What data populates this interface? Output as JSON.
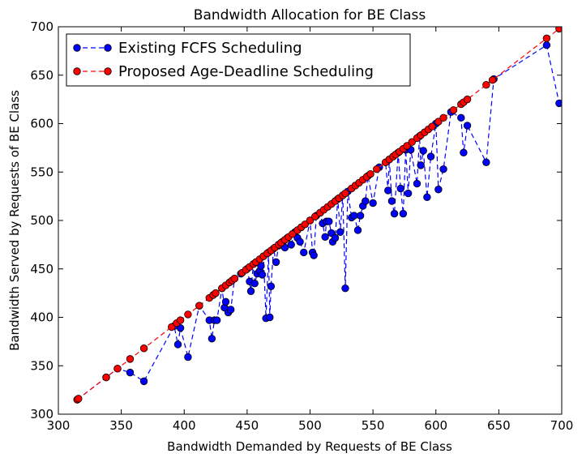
{
  "chart_data": {
    "type": "line",
    "title": "Bandwidth Allocation for BE Class",
    "xlabel": "Bandwidth Demanded by Requests of BE Class",
    "ylabel": "Bandwidth Served by Requests of BE Class",
    "xlim": [
      300,
      700
    ],
    "ylim": [
      300,
      700
    ],
    "xticks": [
      300,
      350,
      400,
      450,
      500,
      550,
      600,
      650,
      700
    ],
    "yticks": [
      300,
      350,
      400,
      450,
      500,
      550,
      600,
      650,
      700
    ],
    "grid": false,
    "legend_position": "top-left",
    "series": [
      {
        "name": "Existing FCFS Scheduling",
        "color": "#0000ff",
        "line_style": "dashed",
        "marker": "circle",
        "points": [
          [
            315,
            315
          ],
          [
            338,
            338
          ],
          [
            347,
            347
          ],
          [
            357,
            343
          ],
          [
            368,
            334
          ],
          [
            392,
            391
          ],
          [
            395,
            372
          ],
          [
            397,
            389
          ],
          [
            403,
            359
          ],
          [
            412,
            412
          ],
          [
            420,
            397
          ],
          [
            422,
            378
          ],
          [
            424,
            397
          ],
          [
            426,
            397
          ],
          [
            430,
            430
          ],
          [
            432,
            410
          ],
          [
            433,
            416
          ],
          [
            435,
            405
          ],
          [
            437,
            408
          ],
          [
            440,
            440
          ],
          [
            445,
            445
          ],
          [
            450,
            450
          ],
          [
            452,
            437
          ],
          [
            453,
            427
          ],
          [
            455,
            455
          ],
          [
            456,
            435
          ],
          [
            458,
            445
          ],
          [
            460,
            448
          ],
          [
            461,
            453
          ],
          [
            462,
            444
          ],
          [
            463,
            463
          ],
          [
            465,
            399
          ],
          [
            467,
            467
          ],
          [
            468,
            400
          ],
          [
            469,
            432
          ],
          [
            471,
            471
          ],
          [
            473,
            457
          ],
          [
            475,
            474
          ],
          [
            478,
            478
          ],
          [
            480,
            472
          ],
          [
            482,
            482
          ],
          [
            485,
            475
          ],
          [
            488,
            488
          ],
          [
            490,
            482
          ],
          [
            492,
            478
          ],
          [
            495,
            467
          ],
          [
            500,
            500
          ],
          [
            502,
            467
          ],
          [
            503,
            464
          ],
          [
            505,
            505
          ],
          [
            508,
            508
          ],
          [
            510,
            497
          ],
          [
            512,
            483
          ],
          [
            513,
            499
          ],
          [
            515,
            499
          ],
          [
            517,
            487
          ],
          [
            518,
            478
          ],
          [
            520,
            482
          ],
          [
            522,
            522
          ],
          [
            524,
            488
          ],
          [
            526,
            526
          ],
          [
            528,
            430
          ],
          [
            530,
            530
          ],
          [
            533,
            503
          ],
          [
            535,
            505
          ],
          [
            538,
            490
          ],
          [
            540,
            505
          ],
          [
            542,
            515
          ],
          [
            544,
            520
          ],
          [
            546,
            546
          ],
          [
            550,
            518
          ],
          [
            555,
            555
          ],
          [
            560,
            560
          ],
          [
            562,
            531
          ],
          [
            563,
            563
          ],
          [
            565,
            520
          ],
          [
            567,
            507
          ],
          [
            570,
            570
          ],
          [
            572,
            533
          ],
          [
            574,
            507
          ],
          [
            576,
            573
          ],
          [
            578,
            528
          ],
          [
            580,
            573
          ],
          [
            585,
            538
          ],
          [
            587,
            587
          ],
          [
            588,
            557
          ],
          [
            590,
            572
          ],
          [
            593,
            524
          ],
          [
            596,
            566
          ],
          [
            600,
            600
          ],
          [
            602,
            532
          ],
          [
            606,
            553
          ],
          [
            612,
            612
          ],
          [
            620,
            606
          ],
          [
            622,
            570
          ],
          [
            625,
            598
          ],
          [
            640,
            560
          ],
          [
            646,
            646
          ],
          [
            688,
            681
          ],
          [
            698,
            621
          ]
        ]
      },
      {
        "name": "Proposed Age-Deadline Scheduling",
        "color": "#ff0000",
        "line_style": "dashed",
        "marker": "circle",
        "points": [
          [
            315,
            315
          ],
          [
            316,
            316
          ],
          [
            338,
            338
          ],
          [
            347,
            347
          ],
          [
            357,
            357
          ],
          [
            368,
            368
          ],
          [
            390,
            390
          ],
          [
            394,
            394
          ],
          [
            397,
            397
          ],
          [
            403,
            403
          ],
          [
            412,
            412
          ],
          [
            420,
            420
          ],
          [
            423,
            423
          ],
          [
            425,
            425
          ],
          [
            430,
            430
          ],
          [
            433,
            433
          ],
          [
            436,
            436
          ],
          [
            438,
            438
          ],
          [
            440,
            440
          ],
          [
            446,
            446
          ],
          [
            449,
            449
          ],
          [
            452,
            452
          ],
          [
            455,
            455
          ],
          [
            457,
            457
          ],
          [
            460,
            460
          ],
          [
            463,
            463
          ],
          [
            466,
            466
          ],
          [
            469,
            469
          ],
          [
            472,
            472
          ],
          [
            475,
            475
          ],
          [
            477,
            477
          ],
          [
            480,
            480
          ],
          [
            483,
            483
          ],
          [
            486,
            486
          ],
          [
            490,
            490
          ],
          [
            493,
            493
          ],
          [
            496,
            496
          ],
          [
            500,
            500
          ],
          [
            504,
            504
          ],
          [
            508,
            508
          ],
          [
            511,
            511
          ],
          [
            514,
            514
          ],
          [
            517,
            517
          ],
          [
            520,
            520
          ],
          [
            523,
            523
          ],
          [
            526,
            526
          ],
          [
            528,
            528
          ],
          [
            533,
            533
          ],
          [
            536,
            536
          ],
          [
            539,
            539
          ],
          [
            542,
            542
          ],
          [
            545,
            545
          ],
          [
            548,
            548
          ],
          [
            553,
            553
          ],
          [
            560,
            560
          ],
          [
            563,
            563
          ],
          [
            566,
            566
          ],
          [
            568,
            568
          ],
          [
            571,
            571
          ],
          [
            574,
            574
          ],
          [
            577,
            577
          ],
          [
            581,
            581
          ],
          [
            585,
            585
          ],
          [
            588,
            588
          ],
          [
            591,
            591
          ],
          [
            594,
            594
          ],
          [
            597,
            597
          ],
          [
            602,
            602
          ],
          [
            606,
            606
          ],
          [
            614,
            614
          ],
          [
            620,
            620
          ],
          [
            622,
            622
          ],
          [
            625,
            625
          ],
          [
            640,
            640
          ],
          [
            645,
            645
          ],
          [
            688,
            688
          ],
          [
            698,
            698
          ]
        ]
      }
    ]
  }
}
